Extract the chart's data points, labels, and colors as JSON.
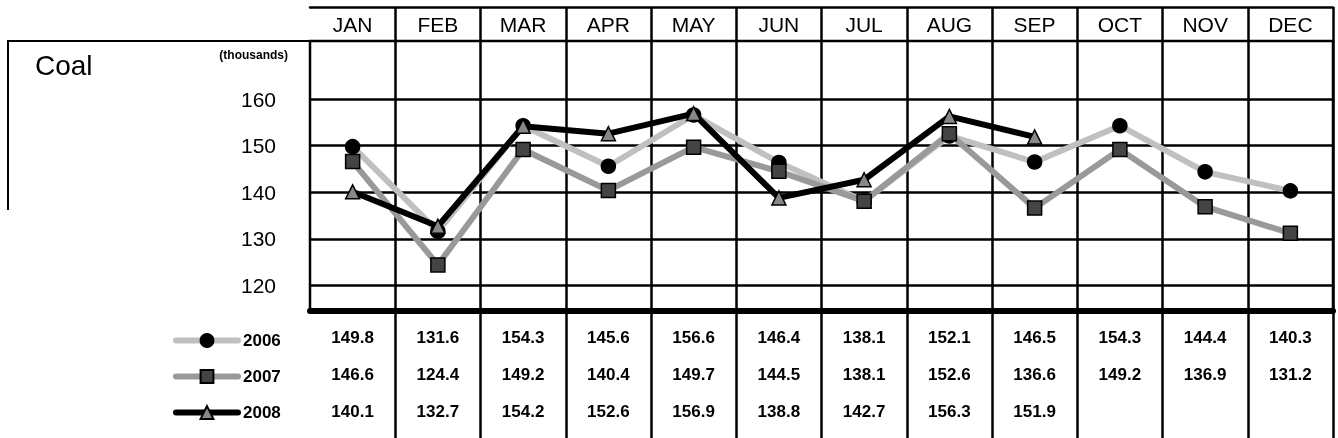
{
  "chart_data": {
    "type": "line",
    "title": "Coal",
    "ylabel": "(thousands)",
    "categories": [
      "JAN",
      "FEB",
      "MAR",
      "APR",
      "MAY",
      "JUN",
      "JUL",
      "AUG",
      "SEP",
      "OCT",
      "NOV",
      "DEC"
    ],
    "series": [
      {
        "name": "2006",
        "color": "#c0c0c0",
        "marker": "circle",
        "values": [
          149.8,
          131.6,
          154.3,
          145.6,
          156.6,
          146.4,
          138.1,
          152.1,
          146.5,
          154.3,
          144.4,
          140.3
        ]
      },
      {
        "name": "2007",
        "color": "#999999",
        "marker": "square",
        "values": [
          146.6,
          124.4,
          149.2,
          140.4,
          149.7,
          144.5,
          138.1,
          152.6,
          136.6,
          149.2,
          136.9,
          131.2
        ]
      },
      {
        "name": "2008",
        "color": "#000000",
        "marker": "triangle",
        "values": [
          140.1,
          132.7,
          154.2,
          152.6,
          156.9,
          138.8,
          142.7,
          156.3,
          151.9,
          null,
          null,
          null
        ]
      }
    ],
    "ylim": [
      114.5,
      172.5
    ],
    "yticks": [
      120,
      130,
      140,
      150,
      160
    ],
    "grid": true,
    "legend": "bottom left",
    "data_labels": true
  }
}
